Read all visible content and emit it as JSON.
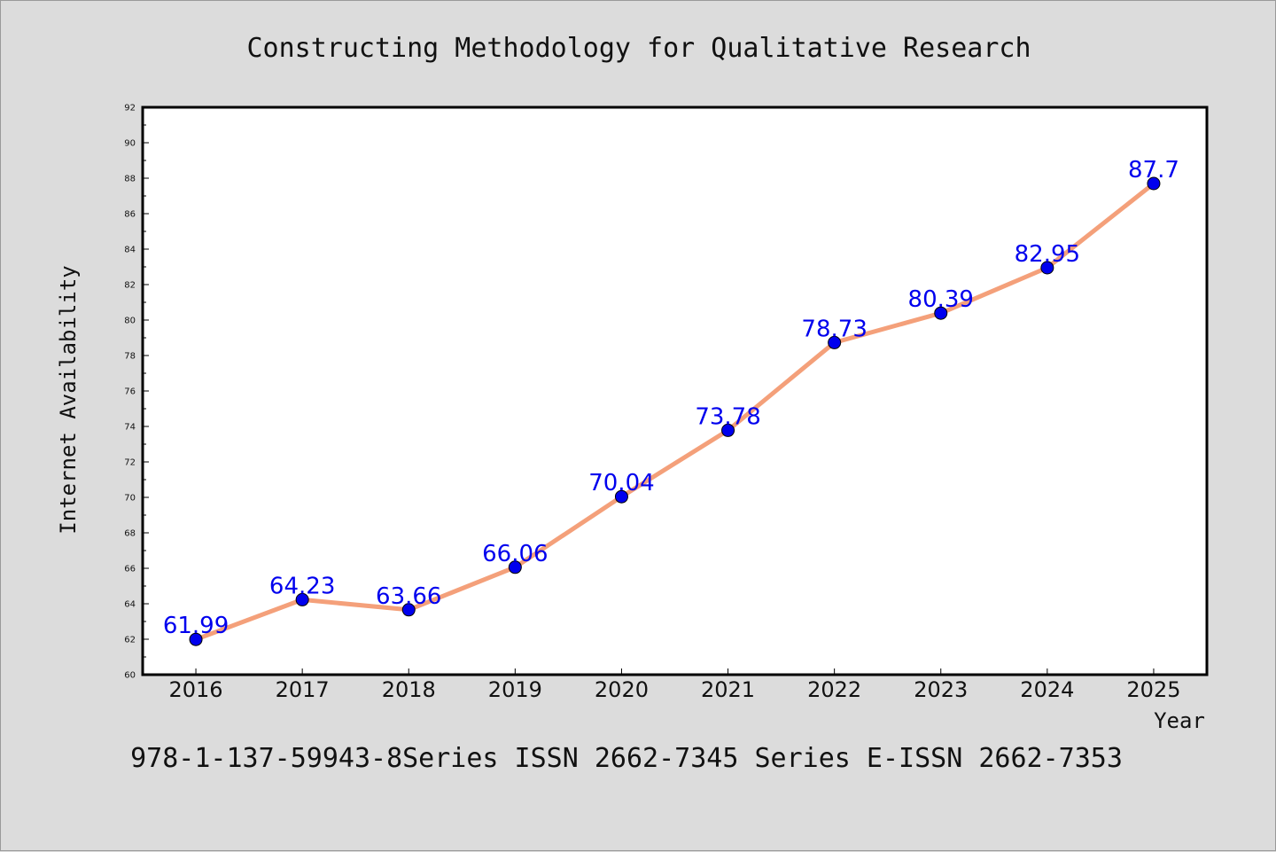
{
  "chart_data": {
    "type": "line",
    "title": "Constructing Methodology for Qualitative Research",
    "xlabel": "Year",
    "ylabel": "Internet Availability",
    "x": [
      "2016",
      "2017",
      "2018",
      "2019",
      "2020",
      "2021",
      "2022",
      "2023",
      "2024",
      "2025"
    ],
    "series": [
      {
        "values": [
          61.99,
          64.23,
          63.66,
          66.06,
          70.04,
          73.78,
          78.73,
          80.39,
          82.95,
          87.7
        ],
        "labels": [
          "61.99",
          "64.23",
          "63.66",
          "66.06",
          "70.04",
          "73.78",
          "78.73",
          "80.39",
          "82.95",
          "87.7"
        ],
        "line_color": "#f4a07a",
        "marker_color": "#0000ee",
        "label_color": "#0000ee"
      }
    ],
    "ylim": [
      60,
      92
    ],
    "yticks": [
      "60",
      "62",
      "64",
      "66",
      "68",
      "70",
      "72",
      "74",
      "76",
      "78",
      "80",
      "82",
      "84",
      "86",
      "88",
      "90",
      "92"
    ],
    "grid": false,
    "legend": "none"
  },
  "footer_text": "978-1-137-59943-8Series ISSN 2662-7345 Series E-ISSN 2662-7353"
}
